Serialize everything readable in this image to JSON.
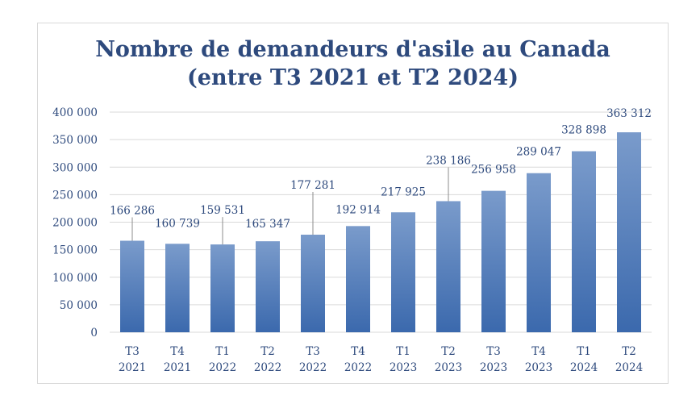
{
  "chart_data": {
    "type": "bar",
    "title": [
      "Nombre de demandeurs d'asile au Canada",
      "(entre T3 2021 et T2 2024)"
    ],
    "categories": [
      [
        "T3",
        "2021"
      ],
      [
        "T4",
        "2021"
      ],
      [
        "T1",
        "2022"
      ],
      [
        "T2",
        "2022"
      ],
      [
        "T3",
        "2022"
      ],
      [
        "T4",
        "2022"
      ],
      [
        "T1",
        "2023"
      ],
      [
        "T2",
        "2023"
      ],
      [
        "T3",
        "2023"
      ],
      [
        "T4",
        "2023"
      ],
      [
        "T1",
        "2024"
      ],
      [
        "T2",
        "2024"
      ]
    ],
    "values": [
      166286,
      160739,
      159531,
      165347,
      177281,
      192914,
      217925,
      238186,
      256958,
      289047,
      328898,
      363312
    ],
    "value_labels": [
      "166 286",
      "160 739",
      "159 531",
      "165 347",
      "177 281",
      "192 914",
      "217 925",
      "238 186",
      "256 958",
      "289 047",
      "328 898",
      "363 312"
    ],
    "ylim": [
      0,
      400000
    ],
    "yticks": [
      0,
      50000,
      100000,
      150000,
      200000,
      250000,
      300000,
      350000,
      400000
    ],
    "ytick_labels": [
      "0",
      "50 000",
      "100 000",
      "150 000",
      "200 000",
      "250 000",
      "300 000",
      "350 000",
      "400 000"
    ],
    "grid": true,
    "legend": "none",
    "colors": {
      "bar_top": "#7a9bcb",
      "bar_bottom": "#3b69ad",
      "text": "#2e4a7d",
      "grid": "#d9d9d9"
    }
  }
}
